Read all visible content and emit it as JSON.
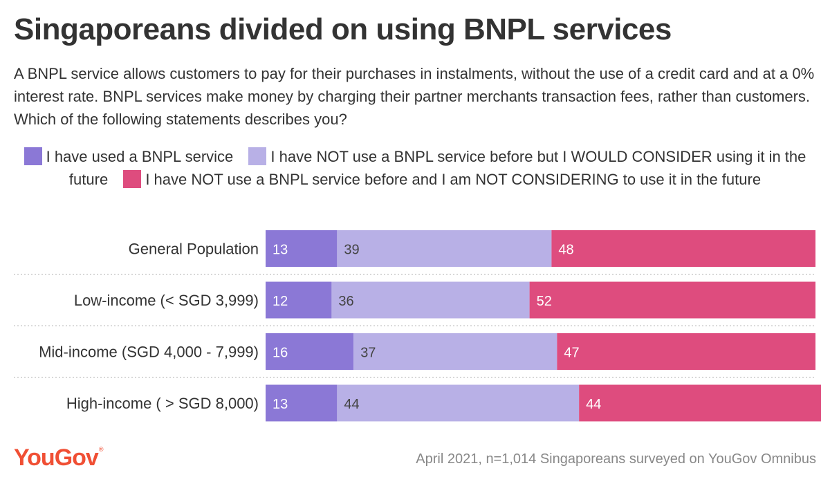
{
  "title": "Singaporeans divided on using BNPL services",
  "subtitle": "A BNPL service allows customers to pay for their purchases in instalments, without the use of a credit card and at a 0% interest rate. BNPL services make money by charging their partner merchants transaction fees, rather than customers. Which of the following statements describes you?",
  "legend": [
    {
      "label": "I have used a BNPL service",
      "color": "#8b78d6"
    },
    {
      "label": "I have NOT use a BNPL service before but I WOULD CONSIDER using it in the future",
      "color": "#b8b0e6"
    },
    {
      "label": "I have NOT use a BNPL service before and I am NOT CONSIDERING to use it in the future",
      "color": "#de4c7e"
    }
  ],
  "chart_data": {
    "type": "bar",
    "orientation": "horizontal",
    "stacked": true,
    "categories": [
      "General Population",
      "Low-income (< SGD 3,999)",
      "Mid-income (SGD 4,000 - 7,999)",
      "High-income ( > SGD 8,000)"
    ],
    "series": [
      {
        "name": "I have used a BNPL service",
        "values": [
          13,
          12,
          16,
          13
        ],
        "color": "#8b78d6"
      },
      {
        "name": "I have NOT use a BNPL service before but I WOULD CONSIDER using it in the future",
        "values": [
          39,
          36,
          37,
          44
        ],
        "color": "#b8b0e6"
      },
      {
        "name": "I have NOT use a BNPL service before and I am NOT CONSIDERING to use it in the future",
        "values": [
          48,
          52,
          47,
          44
        ],
        "color": "#de4c7e"
      }
    ],
    "xlim": [
      0,
      100
    ],
    "grid": false,
    "legend_position": "top"
  },
  "footer": {
    "logo": "YouGov",
    "note": "April 2021, n=1,014 Singaporeans surveyed on YouGov Omnibus"
  }
}
